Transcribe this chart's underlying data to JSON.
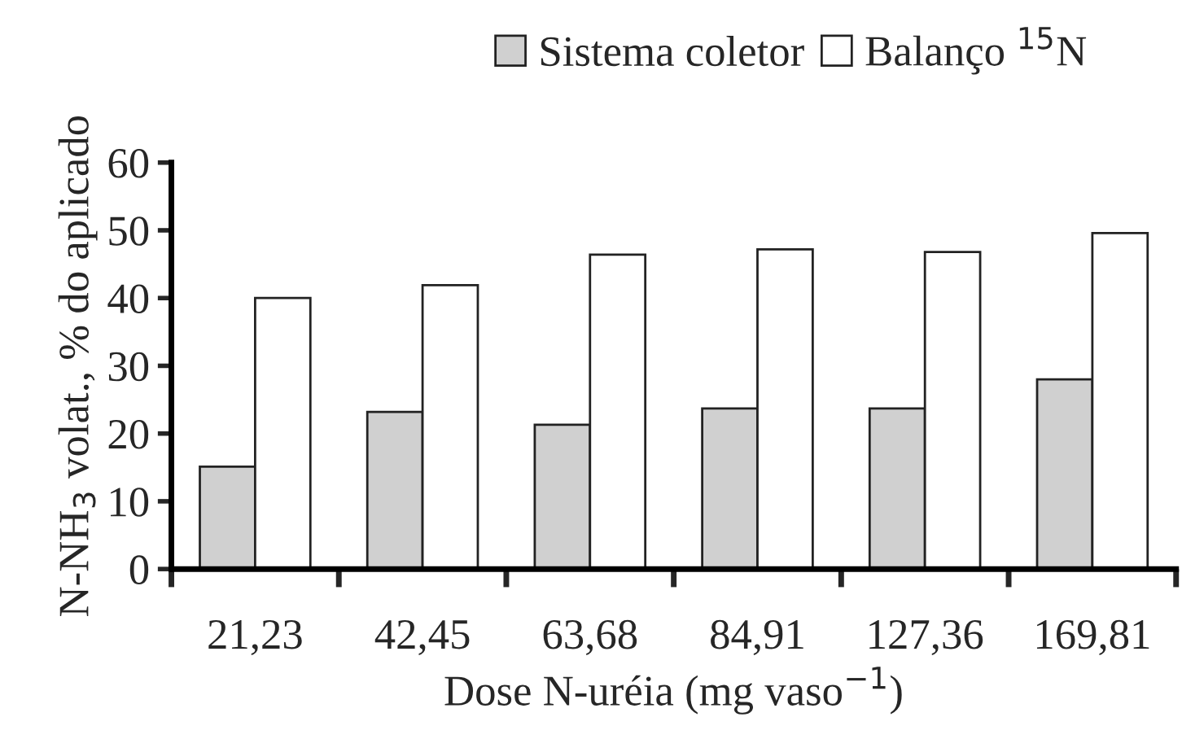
{
  "chart_data": {
    "type": "bar",
    "xlabel": "Dose N-uréia (mg vaso$^{−1}$)",
    "ylabel": "N-NH$_{3}$ volat., % do aplicado",
    "categories": [
      "21,23",
      "42,45",
      "63,68",
      "84,91",
      "127,36",
      "169,81"
    ],
    "series": [
      {
        "name": "Sistema coletor",
        "color": "#d0d0d0",
        "values": [
          15.1,
          23.2,
          21.3,
          23.7,
          23.7,
          28.0
        ]
      },
      {
        "name": "Balanço $^{15}$N",
        "color": "#ffffff",
        "values": [
          40.0,
          41.9,
          46.4,
          47.2,
          46.8,
          49.6
        ]
      }
    ],
    "ylim": [
      0,
      60
    ],
    "yticks": [
      0,
      10,
      20,
      30,
      40,
      50,
      60
    ],
    "grid": false,
    "legend": "top right"
  }
}
